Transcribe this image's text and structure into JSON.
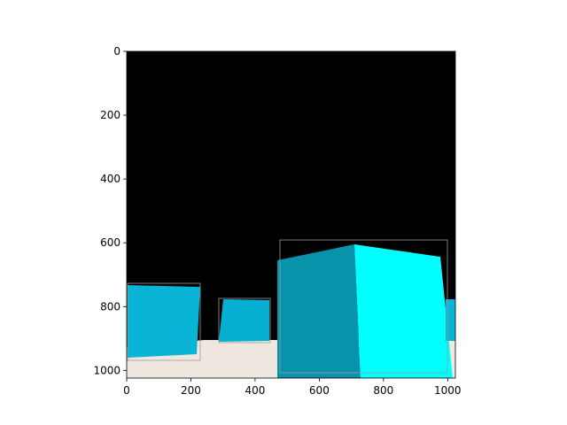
{
  "figure": {
    "x_ticks": [
      "0",
      "200",
      "400",
      "600",
      "800",
      "1000"
    ],
    "y_ticks": [
      "0",
      "200",
      "400",
      "600",
      "800",
      "1000"
    ],
    "x_tick_values": [
      0,
      200,
      400,
      600,
      800,
      1000
    ],
    "y_tick_values": [
      0,
      200,
      400,
      600,
      800,
      1000
    ],
    "x_range": [
      0,
      1024
    ],
    "y_range": [
      1024,
      0
    ],
    "y_axis_inverted": true,
    "background_color": "#000000",
    "floor_color": "#f0e8e0",
    "cube_colors": [
      "#0ab4d6",
      "#0893ab",
      "#00ffff"
    ],
    "bounding_box_color": "#9a9a9a"
  }
}
